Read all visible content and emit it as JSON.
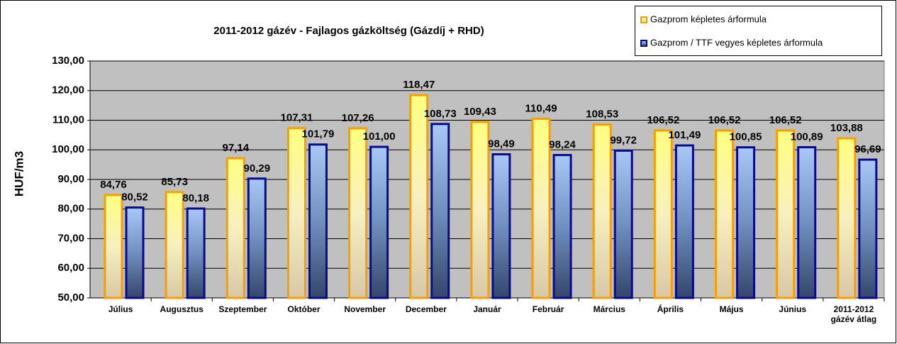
{
  "chart_data": {
    "type": "bar",
    "title": "2011-2012 gázév - Fajlagos gázköltség (Gázdíj + RHD)",
    "y_label": "HUF/m3",
    "categories": [
      "Július",
      "Augusztus",
      "Szeptember",
      "Október",
      "November",
      "December",
      "Január",
      "Február",
      "Március",
      "Április",
      "Május",
      "Június",
      "2011-2012 gázév átlag"
    ],
    "series": [
      {
        "name": "Gazprom képletes árformula",
        "color": "#f5a000",
        "values": [
          84.76,
          85.73,
          97.14,
          107.31,
          107.26,
          118.47,
          109.43,
          110.49,
          108.53,
          106.52,
          106.52,
          106.52,
          103.88
        ],
        "value_labels": [
          "84,76",
          "85,73",
          "97,14",
          "107,31",
          "107,26",
          "118,47",
          "109,43",
          "110,49",
          "108,53",
          "106,52",
          "106,52",
          "106,52",
          "103,88"
        ]
      },
      {
        "name": "Gazprom / TTF vegyes képletes árformula",
        "color": "#0a0a8c",
        "values": [
          80.52,
          80.18,
          90.29,
          101.79,
          101.0,
          108.73,
          98.49,
          98.24,
          99.72,
          101.49,
          100.85,
          100.89,
          96.69
        ],
        "value_labels": [
          "80,52",
          "80,18",
          "90,29",
          "101,79",
          "101,00",
          "108,73",
          "98,49",
          "98,24",
          "99,72",
          "101,49",
          "100,85",
          "100,89",
          "96,69"
        ]
      }
    ],
    "ylim": [
      50,
      130
    ],
    "yticks": [
      {
        "value": 50,
        "label": "50,00"
      },
      {
        "value": 60,
        "label": "60,00"
      },
      {
        "value": 70,
        "label": "70,00"
      },
      {
        "value": 80,
        "label": "80,00"
      },
      {
        "value": 90,
        "label": "90,00"
      },
      {
        "value": 100,
        "label": "100,00"
      },
      {
        "value": 110,
        "label": "110,00"
      },
      {
        "value": 120,
        "label": "120,00"
      },
      {
        "value": 130,
        "label": "130,00"
      }
    ],
    "grid": true,
    "legend": "top-right"
  }
}
